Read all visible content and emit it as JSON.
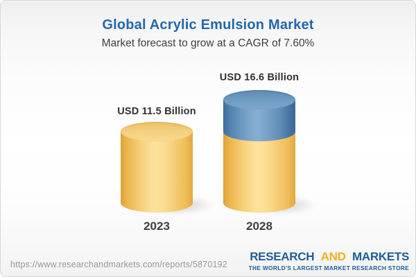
{
  "chart_data": {
    "type": "bar",
    "variant": "3d-cylinder",
    "title": "Global Acrylic Emulsion Market",
    "subtitle": "Market forecast to grow at a CAGR of 7.60%",
    "cagr": "7.60%",
    "categories": [
      "2023",
      "2028"
    ],
    "values": [
      11.5,
      16.6
    ],
    "value_labels": [
      "USD 11.5 Billion",
      "USD 16.6 Billion"
    ],
    "unit": "USD Billion",
    "axes": "none",
    "legend": "none",
    "base_segment_color": "#F2C56F",
    "growth_segment_color": "#6795BD"
  },
  "footer": {
    "url": "https://www.researchandmarkets.com/reports/5870192",
    "logo": {
      "research": "RESEARCH",
      "and": "AND",
      "markets": "MARKETS",
      "tagline": "THE WORLD'S LARGEST MARKET RESEARCH STORE"
    }
  },
  "colors": {
    "title_blue": "#2368A9",
    "subtitle_text": "#3D3E40",
    "logo_blue": "#1E5C96",
    "logo_gold": "#EEB01F",
    "url_gray": "#96989B"
  }
}
